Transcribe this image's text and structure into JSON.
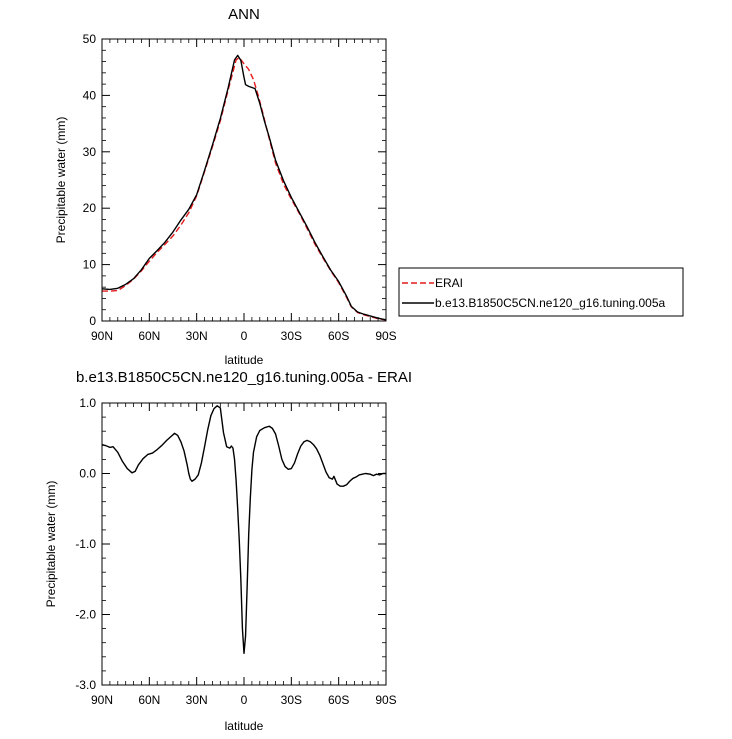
{
  "chart_data": [
    {
      "type": "line",
      "title": "ANN",
      "xlabel": "latitude",
      "ylabel": "Precipitable water (mm)",
      "xlim": [
        -90,
        90
      ],
      "ylim": [
        0,
        50
      ],
      "x_ticks": [
        {
          "value": -90,
          "label": "90N"
        },
        {
          "value": -60,
          "label": "60N"
        },
        {
          "value": -30,
          "label": "30N"
        },
        {
          "value": 0,
          "label": "0"
        },
        {
          "value": 30,
          "label": "30S"
        },
        {
          "value": 60,
          "label": "60S"
        },
        {
          "value": 90,
          "label": "90S"
        }
      ],
      "y_ticks": [
        {
          "value": 0,
          "label": "0"
        },
        {
          "value": 10,
          "label": "10"
        },
        {
          "value": 20,
          "label": "20"
        },
        {
          "value": 30,
          "label": "30"
        },
        {
          "value": 40,
          "label": "40"
        },
        {
          "value": 50,
          "label": "50"
        }
      ],
      "grid": false,
      "legend_position": "right",
      "series": [
        {
          "name": "ERAI",
          "color": "#e41a1c",
          "dash": "dashed",
          "points": [
            [
              -90,
              5.3
            ],
            [
              -85,
              5.3
            ],
            [
              -80,
              5.4
            ],
            [
              -75,
              6.3
            ],
            [
              -70,
              7.4
            ],
            [
              -65,
              8.9
            ],
            [
              -60,
              10.6
            ],
            [
              -55,
              12.2
            ],
            [
              -50,
              13.6
            ],
            [
              -45,
              15.1
            ],
            [
              -40,
              17.0
            ],
            [
              -35,
              19.2
            ],
            [
              -30,
              22.2
            ],
            [
              -25,
              26.5
            ],
            [
              -20,
              30.9
            ],
            [
              -15,
              35.5
            ],
            [
              -10,
              41.0
            ],
            [
              -5,
              46.3
            ],
            [
              -3,
              46.7
            ],
            [
              0,
              45.6
            ],
            [
              3,
              44.6
            ],
            [
              6,
              42.8
            ],
            [
              9,
              40.0
            ],
            [
              12,
              36.8
            ],
            [
              15,
              33.4
            ],
            [
              20,
              28.0
            ],
            [
              25,
              24.3
            ],
            [
              30,
              21.6
            ],
            [
              35,
              19.1
            ],
            [
              40,
              16.4
            ],
            [
              45,
              13.6
            ],
            [
              50,
              11.2
            ],
            [
              55,
              8.9
            ],
            [
              60,
              6.8
            ],
            [
              65,
              4.2
            ],
            [
              68,
              2.5
            ],
            [
              72,
              1.5
            ],
            [
              76,
              1.1
            ],
            [
              80,
              0.8
            ],
            [
              85,
              0.4
            ],
            [
              90,
              0.2
            ]
          ]
        },
        {
          "name": "b.e13.B1850C5CN.ne120_g16.tuning.005a",
          "color": "#000000",
          "dash": "solid",
          "points": [
            [
              -90,
              5.7
            ],
            [
              -85,
              5.6
            ],
            [
              -80,
              5.8
            ],
            [
              -75,
              6.5
            ],
            [
              -70,
              7.5
            ],
            [
              -65,
              9.1
            ],
            [
              -60,
              11.1
            ],
            [
              -55,
              12.5
            ],
            [
              -50,
              14.0
            ],
            [
              -45,
              15.8
            ],
            [
              -40,
              17.9
            ],
            [
              -35,
              19.8
            ],
            [
              -30,
              22.4
            ],
            [
              -25,
              26.7
            ],
            [
              -20,
              31.2
            ],
            [
              -15,
              35.9
            ],
            [
              -10,
              41.4
            ],
            [
              -6,
              46.3
            ],
            [
              -4,
              47.1
            ],
            [
              -2,
              46.2
            ],
            [
              0,
              43.2
            ],
            [
              1,
              41.9
            ],
            [
              3,
              41.6
            ],
            [
              7,
              41.2
            ],
            [
              10,
              38.6
            ],
            [
              13,
              35.4
            ],
            [
              16,
              32.6
            ],
            [
              20,
              28.5
            ],
            [
              25,
              24.9
            ],
            [
              30,
              21.9
            ],
            [
              35,
              19.3
            ],
            [
              40,
              16.7
            ],
            [
              45,
              13.9
            ],
            [
              50,
              11.4
            ],
            [
              55,
              9.0
            ],
            [
              60,
              7.0
            ],
            [
              65,
              4.4
            ],
            [
              68,
              2.6
            ],
            [
              72,
              1.6
            ],
            [
              76,
              1.2
            ],
            [
              80,
              0.9
            ],
            [
              85,
              0.5
            ],
            [
              90,
              0.2
            ]
          ]
        }
      ]
    },
    {
      "type": "line",
      "title": "b.e13.B1850C5CN.ne120_g16.tuning.005a - ERAI",
      "xlabel": "latitude",
      "ylabel": "Precipitable water (mm)",
      "xlim": [
        -90,
        90
      ],
      "ylim": [
        -3.0,
        1.0
      ],
      "x_ticks": [
        {
          "value": -90,
          "label": "90N"
        },
        {
          "value": -60,
          "label": "60N"
        },
        {
          "value": -30,
          "label": "30N"
        },
        {
          "value": 0,
          "label": "0"
        },
        {
          "value": 30,
          "label": "30S"
        },
        {
          "value": 60,
          "label": "60S"
        },
        {
          "value": 90,
          "label": "90S"
        }
      ],
      "y_ticks": [
        {
          "value": 1.0,
          "label": "1.0"
        },
        {
          "value": 0.0,
          "label": "0.0"
        },
        {
          "value": -1.0,
          "label": "-1.0"
        },
        {
          "value": -2.0,
          "label": "-2.0"
        },
        {
          "value": -3.0,
          "label": "-3.0"
        }
      ],
      "grid": false,
      "series": [
        {
          "color": "#000000",
          "dash": "solid",
          "points": [
            [
              -90,
              0.41
            ],
            [
              -87,
              0.39
            ],
            [
              -85,
              0.37
            ],
            [
              -83,
              0.38
            ],
            [
              -80,
              0.3
            ],
            [
              -77,
              0.17
            ],
            [
              -74,
              0.07
            ],
            [
              -71,
              0.01
            ],
            [
              -69,
              0.03
            ],
            [
              -67,
              0.12
            ],
            [
              -64,
              0.21
            ],
            [
              -61,
              0.27
            ],
            [
              -58,
              0.29
            ],
            [
              -55,
              0.34
            ],
            [
              -52,
              0.4
            ],
            [
              -49,
              0.47
            ],
            [
              -46,
              0.53
            ],
            [
              -44,
              0.57
            ],
            [
              -42,
              0.54
            ],
            [
              -40,
              0.45
            ],
            [
              -38,
              0.32
            ],
            [
              -36,
              0.12
            ],
            [
              -35,
              0.0
            ],
            [
              -34,
              -0.08
            ],
            [
              -33,
              -0.11
            ],
            [
              -31,
              -0.08
            ],
            [
              -29,
              -0.02
            ],
            [
              -27,
              0.15
            ],
            [
              -25,
              0.38
            ],
            [
              -23,
              0.62
            ],
            [
              -21,
              0.82
            ],
            [
              -19,
              0.92
            ],
            [
              -17,
              0.96
            ],
            [
              -15,
              0.93
            ],
            [
              -13,
              0.58
            ],
            [
              -11,
              0.38
            ],
            [
              -9,
              0.36
            ],
            [
              -8,
              0.39
            ],
            [
              -7,
              0.36
            ],
            [
              -6,
              0.2
            ],
            [
              -5,
              -0.1
            ],
            [
              -4,
              -0.5
            ],
            [
              -3,
              -0.95
            ],
            [
              -2,
              -1.5
            ],
            [
              -1,
              -2.2
            ],
            [
              0,
              -2.55
            ],
            [
              1,
              -2.3
            ],
            [
              2,
              -1.6
            ],
            [
              3,
              -0.85
            ],
            [
              4,
              -0.35
            ],
            [
              5,
              0.05
            ],
            [
              6,
              0.3
            ],
            [
              8,
              0.52
            ],
            [
              10,
              0.61
            ],
            [
              13,
              0.65
            ],
            [
              16,
              0.67
            ],
            [
              18,
              0.64
            ],
            [
              20,
              0.56
            ],
            [
              22,
              0.39
            ],
            [
              24,
              0.2
            ],
            [
              26,
              0.1
            ],
            [
              28,
              0.06
            ],
            [
              30,
              0.07
            ],
            [
              32,
              0.15
            ],
            [
              34,
              0.28
            ],
            [
              36,
              0.39
            ],
            [
              38,
              0.45
            ],
            [
              40,
              0.47
            ],
            [
              42,
              0.45
            ],
            [
              44,
              0.41
            ],
            [
              46,
              0.35
            ],
            [
              48,
              0.26
            ],
            [
              50,
              0.14
            ],
            [
              52,
              0.02
            ],
            [
              54,
              -0.06
            ],
            [
              56,
              -0.08
            ],
            [
              57,
              -0.04
            ],
            [
              59,
              -0.15
            ],
            [
              61,
              -0.18
            ],
            [
              63,
              -0.18
            ],
            [
              65,
              -0.16
            ],
            [
              67,
              -0.11
            ],
            [
              69,
              -0.07
            ],
            [
              71,
              -0.05
            ],
            [
              73,
              -0.02
            ],
            [
              75,
              -0.01
            ],
            [
              77,
              0.0
            ],
            [
              80,
              -0.01
            ],
            [
              82,
              -0.03
            ],
            [
              84,
              -0.01
            ],
            [
              86,
              -0.02
            ],
            [
              88,
              0.0
            ],
            [
              90,
              0.0
            ]
          ]
        }
      ]
    }
  ]
}
